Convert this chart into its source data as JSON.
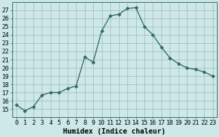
{
  "x": [
    0,
    1,
    2,
    3,
    4,
    5,
    6,
    7,
    8,
    9,
    10,
    11,
    12,
    13,
    14,
    15,
    16,
    17,
    18,
    19,
    20,
    21,
    22,
    23
  ],
  "y": [
    15.5,
    14.8,
    15.3,
    16.7,
    17.0,
    17.0,
    17.5,
    17.8,
    21.3,
    20.7,
    24.5,
    26.3,
    26.5,
    27.2,
    27.3,
    25.0,
    24.0,
    22.5,
    21.2,
    20.5,
    20.0,
    19.8,
    19.5,
    19.0
  ],
  "line_color": "#2e6b5e",
  "marker": "D",
  "marker_size": 2.5,
  "bg_color": "#cce8e8",
  "grid_color": "#aabbbb",
  "xlabel": "Humidex (Indice chaleur)",
  "ylim": [
    14,
    28
  ],
  "xlim": [
    -0.5,
    23.5
  ],
  "yticks": [
    15,
    16,
    17,
    18,
    19,
    20,
    21,
    22,
    23,
    24,
    25,
    26,
    27
  ],
  "xticks": [
    0,
    1,
    2,
    3,
    4,
    5,
    6,
    7,
    8,
    9,
    10,
    11,
    12,
    13,
    14,
    15,
    16,
    17,
    18,
    19,
    20,
    21,
    22,
    23
  ],
  "tick_fontsize": 6.5,
  "label_fontsize": 7.5
}
